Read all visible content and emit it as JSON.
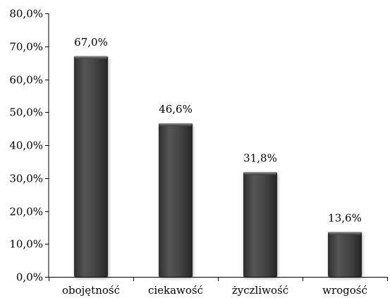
{
  "chart_data": {
    "type": "bar",
    "categories": [
      "obojętność",
      "ciekawość",
      "życzliwość",
      "wrogość"
    ],
    "values": [
      67.0,
      46.6,
      31.8,
      13.6
    ],
    "data_labels": [
      "67,0%",
      "46,6%",
      "31,8%",
      "13,6%"
    ],
    "ylim": [
      0,
      80
    ],
    "yticks": [
      0,
      10,
      20,
      30,
      40,
      50,
      60,
      70,
      80
    ],
    "ytick_labels": [
      "0,0%",
      "10,0%",
      "20,0%",
      "30,0%",
      "40,0%",
      "50,0%",
      "60,0%",
      "70,0%",
      "80,0%"
    ],
    "grid": false,
    "legend": "none",
    "colors": {
      "bar_dark": "#3a3a3a",
      "bar_light": "#5a5a5a",
      "axis": "#000000"
    }
  }
}
